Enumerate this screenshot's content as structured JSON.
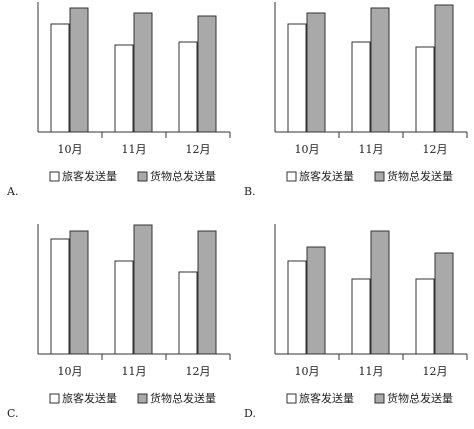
{
  "chart_data": [
    {
      "type": "bar",
      "label": "A.",
      "categories": [
        "10月",
        "11月",
        "12月"
      ],
      "series": [
        {
          "name": "旅客发送量",
          "color": "#ffffff",
          "values": [
            108,
            87,
            90
          ]
        },
        {
          "name": "货物总发送量",
          "color": "#a9a9a9",
          "values": [
            124,
            119,
            116
          ]
        }
      ]
    },
    {
      "type": "bar",
      "label": "B.",
      "categories": [
        "10月",
        "11月",
        "12月"
      ],
      "series": [
        {
          "name": "旅客发送量",
          "color": "#ffffff",
          "values": [
            108,
            90,
            85
          ]
        },
        {
          "name": "货物总发送量",
          "color": "#a9a9a9",
          "values": [
            119,
            124,
            127
          ]
        }
      ]
    },
    {
      "type": "bar",
      "label": "C.",
      "categories": [
        "10月",
        "11月",
        "12月"
      ],
      "series": [
        {
          "name": "旅客发送量",
          "color": "#ffffff",
          "values": [
            115,
            93,
            82
          ]
        },
        {
          "name": "货物总发送量",
          "color": "#a9a9a9",
          "values": [
            123,
            129,
            123
          ]
        }
      ]
    },
    {
      "type": "bar",
      "label": "D.",
      "categories": [
        "10月",
        "11月",
        "12月"
      ],
      "series": [
        {
          "name": "旅客发送量",
          "color": "#ffffff",
          "values": [
            93,
            75,
            75
          ]
        },
        {
          "name": "货物总发送量",
          "color": "#a9a9a9",
          "values": [
            107,
            123,
            101
          ]
        }
      ]
    }
  ]
}
